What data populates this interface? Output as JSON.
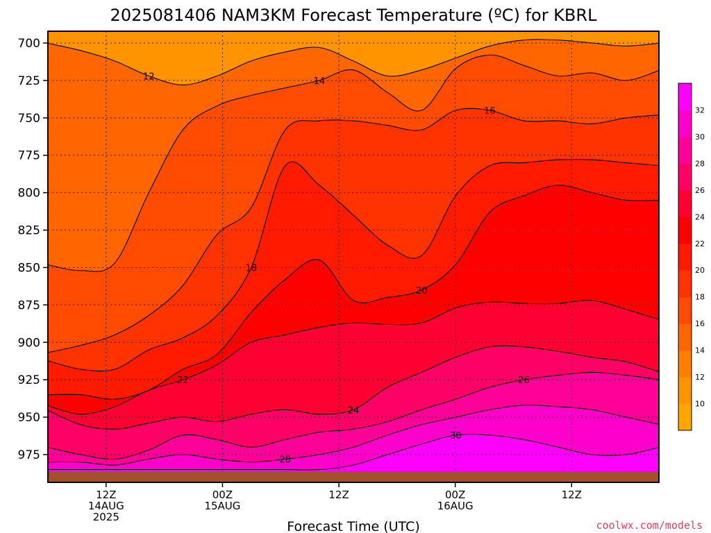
{
  "chart_data": {
    "type": "heatmap",
    "title": "2025081406 NAM3KM Forecast Temperature (ºC) for KBRL",
    "xlabel": "Forecast Time (UTC)",
    "ylabel": "",
    "credit": "coolwx.com/models",
    "y_axis": {
      "scale": "pressure (hPa), decreasing upward",
      "range": [
        985,
        693
      ],
      "ticks": [
        "700",
        "725",
        "750",
        "775",
        "800",
        "825",
        "850",
        "875",
        "900",
        "925",
        "950",
        "975"
      ]
    },
    "x_axis": {
      "range": [
        "2025-08-14 06Z",
        "2025-08-16 21Z"
      ],
      "ticks": [
        {
          "time": "2025-08-14 12Z",
          "lines": [
            "12Z",
            "14AUG",
            "2025"
          ]
        },
        {
          "time": "2025-08-15 00Z",
          "lines": [
            "00Z",
            "15AUG"
          ]
        },
        {
          "time": "2025-08-15 12Z",
          "lines": [
            "12Z"
          ]
        },
        {
          "time": "2025-08-16 00Z",
          "lines": [
            "00Z",
            "16AUG"
          ]
        },
        {
          "time": "2025-08-16 12Z",
          "lines": [
            "12Z"
          ]
        }
      ]
    },
    "grid": true,
    "contour_interval_c": 2,
    "colorbar": {
      "placement": "right",
      "labels": [
        "10",
        "12",
        "14",
        "16",
        "18",
        "20",
        "22",
        "24",
        "26",
        "28",
        "30",
        "32"
      ],
      "colors": [
        "#ffa500",
        "#ff9300",
        "#ff8000",
        "#ff6600",
        "#ff4c00",
        "#ff3300",
        "#ff1a00",
        "#ff0000",
        "#ff0033",
        "#ff0066",
        "#ff0099",
        "#ff00cc",
        "#ff00ff"
      ]
    },
    "contours": [
      {
        "value": 12,
        "label": "12",
        "pressures_hpa": [
          700,
          705,
          712,
          722,
          728,
          722,
          712,
          706,
          703,
          712,
          722,
          718,
          710,
          702,
          698,
          698,
          700,
          702,
          700
        ]
      },
      {
        "value": 14,
        "label": "14",
        "pressures_hpa": [
          848,
          852,
          847,
          800,
          758,
          742,
          735,
          730,
          725,
          718,
          733,
          745,
          717,
          708,
          715,
          722,
          720,
          725,
          718
        ]
      },
      {
        "value": 16,
        "label": "16",
        "pressures_hpa": [
          907,
          902,
          895,
          882,
          862,
          828,
          810,
          758,
          752,
          752,
          755,
          758,
          745,
          745,
          752,
          752,
          754,
          750,
          748
        ]
      },
      {
        "value": 18,
        "label": "18",
        "pressures_hpa": [
          912,
          918,
          918,
          905,
          897,
          882,
          850,
          782,
          795,
          815,
          835,
          842,
          802,
          782,
          780,
          778,
          778,
          780,
          782
        ]
      },
      {
        "value": 20,
        "label": "20",
        "pressures_hpa": [
          935,
          935,
          938,
          932,
          918,
          908,
          880,
          858,
          845,
          872,
          870,
          865,
          848,
          813,
          802,
          795,
          800,
          805,
          805
        ]
      },
      {
        "value": 22,
        "label": "22",
        "pressures_hpa": [
          942,
          948,
          943,
          932,
          925,
          915,
          900,
          895,
          890,
          887,
          888,
          887,
          877,
          873,
          874,
          874,
          872,
          878,
          885
        ]
      },
      {
        "value": 24,
        "label": "24",
        "pressures_hpa": [
          945,
          955,
          958,
          954,
          950,
          953,
          948,
          945,
          948,
          945,
          930,
          920,
          910,
          903,
          903,
          906,
          910,
          913,
          920
        ]
      },
      {
        "value": 26,
        "label": "26",
        "pressures_hpa": [
          970,
          975,
          978,
          972,
          962,
          965,
          970,
          965,
          960,
          958,
          953,
          945,
          938,
          930,
          925,
          922,
          920,
          922,
          925
        ]
      },
      {
        "value": 28,
        "label": "28",
        "pressures_hpa": [
          980,
          980,
          982,
          978,
          975,
          978,
          980,
          978,
          975,
          970,
          962,
          955,
          950,
          945,
          942,
          943,
          945,
          950,
          955
        ]
      },
      {
        "value": 30,
        "label": "30",
        "pressures_hpa": [
          985,
          985,
          985,
          985,
          985,
          985,
          985,
          985,
          985,
          982,
          975,
          968,
          962,
          962,
          965,
          970,
          975,
          975,
          970
        ]
      }
    ]
  }
}
